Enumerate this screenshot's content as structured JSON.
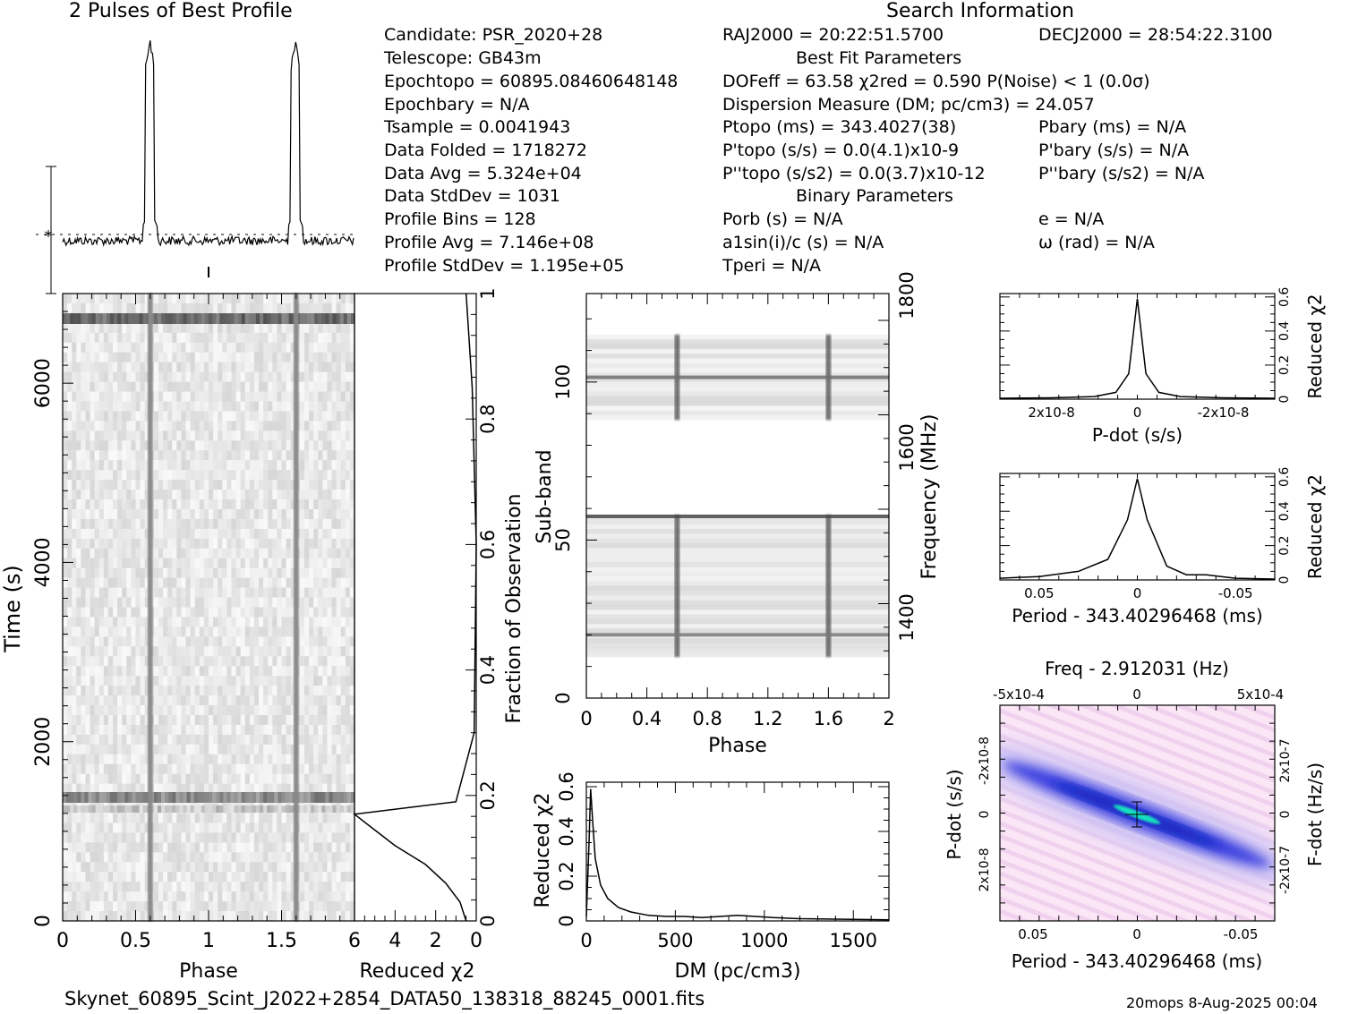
{
  "profile_title": "2 Pulses of Best Profile",
  "search_title": "Search Information",
  "info": {
    "candidate": "Candidate:  PSR_2020+28",
    "telescope": "Telescope:  GB43m",
    "epoch_topo": "Epochtopo = 60895.08460648148",
    "epoch_bary": "Epochbary = N/A",
    "t_sample": "Tsample        =  0.0041943",
    "data_folded": "Data Folded    =  1718272",
    "data_avg": "Data Avg       =  5.324e+04",
    "data_stddev": "Data StdDev    =  1031",
    "profile_bins": "Profile Bins   =  128",
    "profile_avg": "Profile Avg    =  7.146e+08",
    "profile_stddev": "Profile StdDev =  1.195e+05"
  },
  "search": {
    "ra": "RAJ2000 = 20:22:51.5700",
    "dec": "DECJ2000 = 28:54:22.3100",
    "best_fit_title": "Best Fit Parameters",
    "dof": "DOFeff = 63.58  χ2red = 0.590  P(Noise) < 1   (0.0σ)",
    "dm": "Dispersion Measure (DM; pc/cm3) = 24.057",
    "p_topo": "Ptopo (ms) =  343.4027(38)",
    "p_bary": "Pbary (ms) = N/A",
    "pd_topo": "P'topo (s/s) = 0.0(4.1)x10-9",
    "pd_bary": "P'bary (s/s) = N/A",
    "pdd_topo": "P''topo (s/s2) = 0.0(3.7)x10-12",
    "pdd_bary": "P''bary (s/s2) = N/A",
    "binary_title": "Binary Parameters",
    "p_orb": "Porb (s) = N/A",
    "e": "e = N/A",
    "a1": "a1sin(i)/c (s) = N/A",
    "omega": "ω (rad) = N/A",
    "t_peri": "Tperi = N/A"
  },
  "footer": {
    "filename": "Skynet_60895_Scint_J2022+2854_DATA50_138318_88245_0001.fits",
    "stamp": "20mops  8-Aug-2025 00:04"
  },
  "chart_data": [
    {
      "type": "line",
      "name": "profile",
      "title": "2 Pulses of Best Profile",
      "xlim": [
        0,
        2
      ],
      "peaks_phase": [
        0.6,
        1.6
      ],
      "baseline": "noisy",
      "note": "dashed line marks mean level"
    },
    {
      "type": "heatmap",
      "name": "time-phase",
      "xlabel": "Phase",
      "ylabel": "Time (s)",
      "xlim": [
        0,
        2
      ],
      "ylim": [
        0,
        7000
      ],
      "xticks": [
        "0",
        "0.5",
        "1",
        "1.5"
      ],
      "yticks": [
        "0",
        "2000",
        "4000",
        "6000"
      ],
      "pulse_phase": [
        0.6,
        1.6
      ]
    },
    {
      "type": "line",
      "name": "time-chi2",
      "xlabel": "Reduced χ2",
      "ylabel": "Fraction of Observation",
      "xlim": [
        6,
        0
      ],
      "ylim": [
        0,
        1
      ],
      "xticks": [
        "6",
        "4",
        "2",
        "0"
      ],
      "yticks": [
        "0",
        "0.2",
        "0.4",
        "0.6",
        "0.8",
        "1"
      ],
      "x": [
        0.5,
        0.8,
        1.5,
        2.5,
        4.0,
        5.2,
        6.0,
        1.0,
        0.1,
        0.0,
        0.2,
        0.5
      ],
      "y": [
        0.0,
        0.03,
        0.06,
        0.09,
        0.12,
        0.15,
        0.17,
        0.19,
        0.3,
        0.6,
        0.85,
        1.0
      ]
    },
    {
      "type": "heatmap",
      "name": "subband-phase",
      "xlabel": "Phase",
      "ylabel": "Sub-band",
      "y2label": "Frequency (MHz)",
      "xlim": [
        0,
        2
      ],
      "ylim": [
        0,
        128
      ],
      "xticks": [
        "0",
        "0.4",
        "0.8",
        "1.2",
        "1.6",
        "2"
      ],
      "yticks": [
        "0",
        "50",
        "100"
      ],
      "y2ticks": [
        "1400",
        "1600",
        "1800"
      ],
      "occupied_subbands": [
        [
          13,
          58
        ],
        [
          88,
          115
        ]
      ],
      "pulse_phase": [
        0.6,
        1.6
      ]
    },
    {
      "type": "line",
      "name": "dm-chi2",
      "xlabel": "DM (pc/cm3)",
      "ylabel": "Reduced χ2",
      "xlim": [
        0,
        1700
      ],
      "ylim": [
        0,
        0.62
      ],
      "xticks": [
        "0",
        "500",
        "1000",
        "1500"
      ],
      "yticks": [
        "0",
        "0.2",
        "0.4",
        "0.6"
      ],
      "x": [
        0,
        15,
        24,
        35,
        50,
        80,
        120,
        180,
        250,
        350,
        450,
        550,
        650,
        750,
        850,
        950,
        1050,
        1200,
        1400,
        1700
      ],
      "y": [
        0.02,
        0.35,
        0.59,
        0.45,
        0.28,
        0.16,
        0.1,
        0.06,
        0.04,
        0.025,
        0.02,
        0.02,
        0.015,
        0.02,
        0.025,
        0.02,
        0.015,
        0.01,
        0.008,
        0.005
      ]
    },
    {
      "type": "line",
      "name": "pdot-chi2",
      "xlabel": "P-dot (s/s)",
      "ylabel": "Reduced χ2",
      "ylim": [
        0,
        0.62
      ],
      "xticks": [
        "2x10-8",
        "0",
        "-2x10-8"
      ],
      "yticks": [
        "0",
        "0.2",
        "0.4",
        "0.6"
      ],
      "x": [
        3.2e-08,
        2e-08,
        1e-08,
        5e-09,
        2e-09,
        0,
        -2e-09,
        -5e-09,
        -1e-08,
        -2e-08,
        -3.2e-08
      ],
      "y": [
        0.005,
        0.008,
        0.015,
        0.04,
        0.15,
        0.59,
        0.15,
        0.04,
        0.015,
        0.008,
        0.005
      ]
    },
    {
      "type": "line",
      "name": "period-chi2",
      "xlabel": "Period - 343.40296468 (ms)",
      "ylabel": "Reduced χ2",
      "ylim": [
        0,
        0.62
      ],
      "xticks": [
        "0.05",
        "0",
        "-0.05"
      ],
      "yticks": [
        "0",
        "0.2",
        "0.4",
        "0.6"
      ],
      "x": [
        0.07,
        0.05,
        0.03,
        0.015,
        0.005,
        0,
        -0.005,
        -0.015,
        -0.025,
        -0.035,
        -0.05,
        -0.07
      ],
      "y": [
        0.01,
        0.02,
        0.05,
        0.12,
        0.35,
        0.59,
        0.35,
        0.08,
        0.03,
        0.03,
        0.01,
        0.005
      ]
    },
    {
      "type": "heatmap",
      "name": "period-pdot",
      "title": "Freq - 2.912031 (Hz)",
      "xlabel": "Period - 343.40296468 (ms)",
      "ylabel": "P-dot (s/s)",
      "y2label": "F-dot (Hz/s)",
      "xticks": [
        "0.05",
        "0",
        "-0.05"
      ],
      "x2ticks": [
        "-5x10-4",
        "0",
        "5x10-4"
      ],
      "yticks": [
        "-2x10-8",
        "0",
        "2x10-8"
      ],
      "y2ticks": [
        "2x10-7",
        "0",
        "-2x10-7"
      ],
      "best_fit": [
        0,
        0
      ]
    }
  ]
}
